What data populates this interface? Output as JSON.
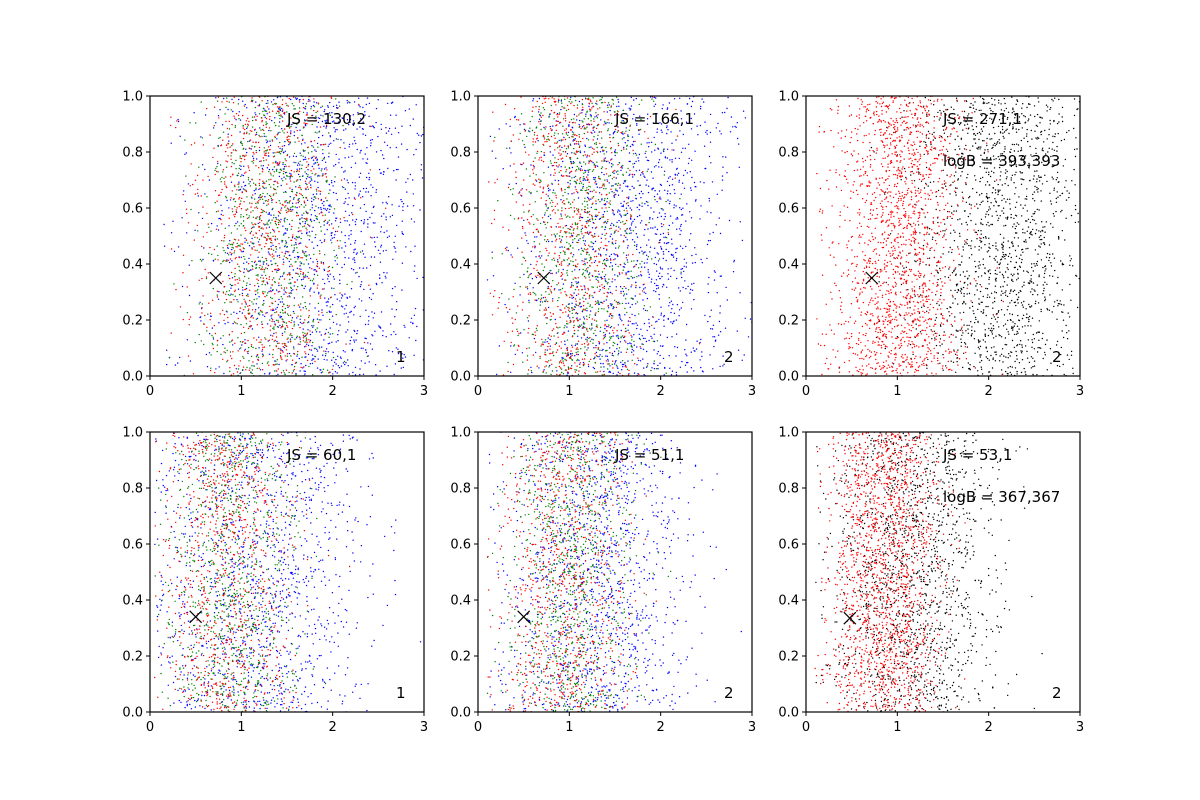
{
  "chart_data": [
    {
      "type": "scatter",
      "panel_label": "1",
      "annotations": [
        "JS = 130,2"
      ],
      "xlim": [
        0,
        3
      ],
      "ylim": [
        0,
        1
      ],
      "xticks": [
        "0",
        "1",
        "2",
        "3"
      ],
      "yticks": [
        "0.0",
        "0.2",
        "0.4",
        "0.6",
        "0.8",
        "1.0"
      ],
      "marker": {
        "x": 0.72,
        "y": 0.35
      },
      "series": [
        {
          "color": "#0000ff",
          "x_mean": 1.85,
          "x_sd": 0.65,
          "x_min": 0.15,
          "count": 1400
        },
        {
          "color": "#008000",
          "x_mean": 1.3,
          "x_sd": 0.38,
          "x_min": 0.2,
          "count": 850
        },
        {
          "color": "#ff0000",
          "x_mean": 1.25,
          "x_sd": 0.4,
          "x_min": 0.2,
          "count": 850
        }
      ]
    },
    {
      "type": "scatter",
      "panel_label": "2",
      "annotations": [
        "JS = 166,1"
      ],
      "xlim": [
        0,
        3
      ],
      "ylim": [
        0,
        1
      ],
      "xticks": [
        "0",
        "1",
        "2",
        "3"
      ],
      "yticks": [
        "0.0",
        "0.2",
        "0.4",
        "0.6",
        "0.8",
        "1.0"
      ],
      "marker": {
        "x": 0.72,
        "y": 0.35
      },
      "series": [
        {
          "color": "#0000ff",
          "x_mean": 1.65,
          "x_sd": 0.6,
          "x_min": 0.1,
          "count": 1400
        },
        {
          "color": "#008000",
          "x_mean": 1.15,
          "x_sd": 0.38,
          "x_min": 0.1,
          "count": 850
        },
        {
          "color": "#ff0000",
          "x_mean": 1.05,
          "x_sd": 0.38,
          "x_min": 0.1,
          "count": 850
        }
      ]
    },
    {
      "type": "scatter",
      "panel_label": "2",
      "annotations": [
        "JS = 271,1",
        "logB = 393,393"
      ],
      "xlim": [
        0,
        3
      ],
      "ylim": [
        0,
        1
      ],
      "xticks": [
        "0",
        "1",
        "2",
        "3"
      ],
      "yticks": [
        "0.0",
        "0.2",
        "0.4",
        "0.6",
        "0.8",
        "1.0"
      ],
      "marker": {
        "x": 0.72,
        "y": 0.35
      },
      "series": [
        {
          "color": "#000000",
          "x_mean": 2.15,
          "x_sd": 0.5,
          "x_min": 0.2,
          "count": 1600
        },
        {
          "color": "#ff0000",
          "x_mean": 1.0,
          "x_sd": 0.35,
          "x_min": 0.1,
          "count": 1700
        }
      ]
    },
    {
      "type": "scatter",
      "panel_label": "1",
      "annotations": [
        "JS = 60,1"
      ],
      "xlim": [
        0,
        3
      ],
      "ylim": [
        0,
        1
      ],
      "xticks": [
        "0",
        "1",
        "2",
        "3"
      ],
      "yticks": [
        "0.0",
        "0.2",
        "0.4",
        "0.6",
        "0.8",
        "1.0"
      ],
      "marker": {
        "x": 0.5,
        "y": 0.34
      },
      "series": [
        {
          "color": "#0000ff",
          "x_mean": 1.2,
          "x_sd": 0.55,
          "x_min": 0.05,
          "count": 1300
        },
        {
          "color": "#008000",
          "x_mean": 0.9,
          "x_sd": 0.35,
          "x_min": 0.05,
          "count": 900
        },
        {
          "color": "#ff0000",
          "x_mean": 0.85,
          "x_sd": 0.35,
          "x_min": 0.05,
          "count": 900
        }
      ]
    },
    {
      "type": "scatter",
      "panel_label": "2",
      "annotations": [
        "JS = 51,1"
      ],
      "xlim": [
        0,
        3
      ],
      "ylim": [
        0,
        1
      ],
      "xticks": [
        "0",
        "1",
        "2",
        "3"
      ],
      "yticks": [
        "0.0",
        "0.2",
        "0.4",
        "0.6",
        "0.8",
        "1.0"
      ],
      "marker": {
        "x": 0.5,
        "y": 0.34
      },
      "series": [
        {
          "color": "#0000ff",
          "x_mean": 1.3,
          "x_sd": 0.5,
          "x_min": 0.1,
          "count": 1300
        },
        {
          "color": "#008000",
          "x_mean": 1.05,
          "x_sd": 0.35,
          "x_min": 0.1,
          "count": 900
        },
        {
          "color": "#ff0000",
          "x_mean": 0.95,
          "x_sd": 0.35,
          "x_min": 0.1,
          "count": 900
        }
      ]
    },
    {
      "type": "scatter",
      "panel_label": "2",
      "annotations": [
        "JS = 53,1",
        "logB = 367,367"
      ],
      "xlim": [
        0,
        3
      ],
      "ylim": [
        0,
        1
      ],
      "xticks": [
        "0",
        "1",
        "2",
        "3"
      ],
      "yticks": [
        "0.0",
        "0.2",
        "0.4",
        "0.6",
        "0.8",
        "1.0"
      ],
      "marker": {
        "x": 0.48,
        "y": 0.335
      },
      "series": [
        {
          "color": "#000000",
          "x_mean": 1.2,
          "x_sd": 0.45,
          "x_min": 0.1,
          "count": 1500
        },
        {
          "color": "#ff0000",
          "x_mean": 0.85,
          "x_sd": 0.3,
          "x_min": 0.1,
          "count": 1700
        }
      ]
    }
  ]
}
